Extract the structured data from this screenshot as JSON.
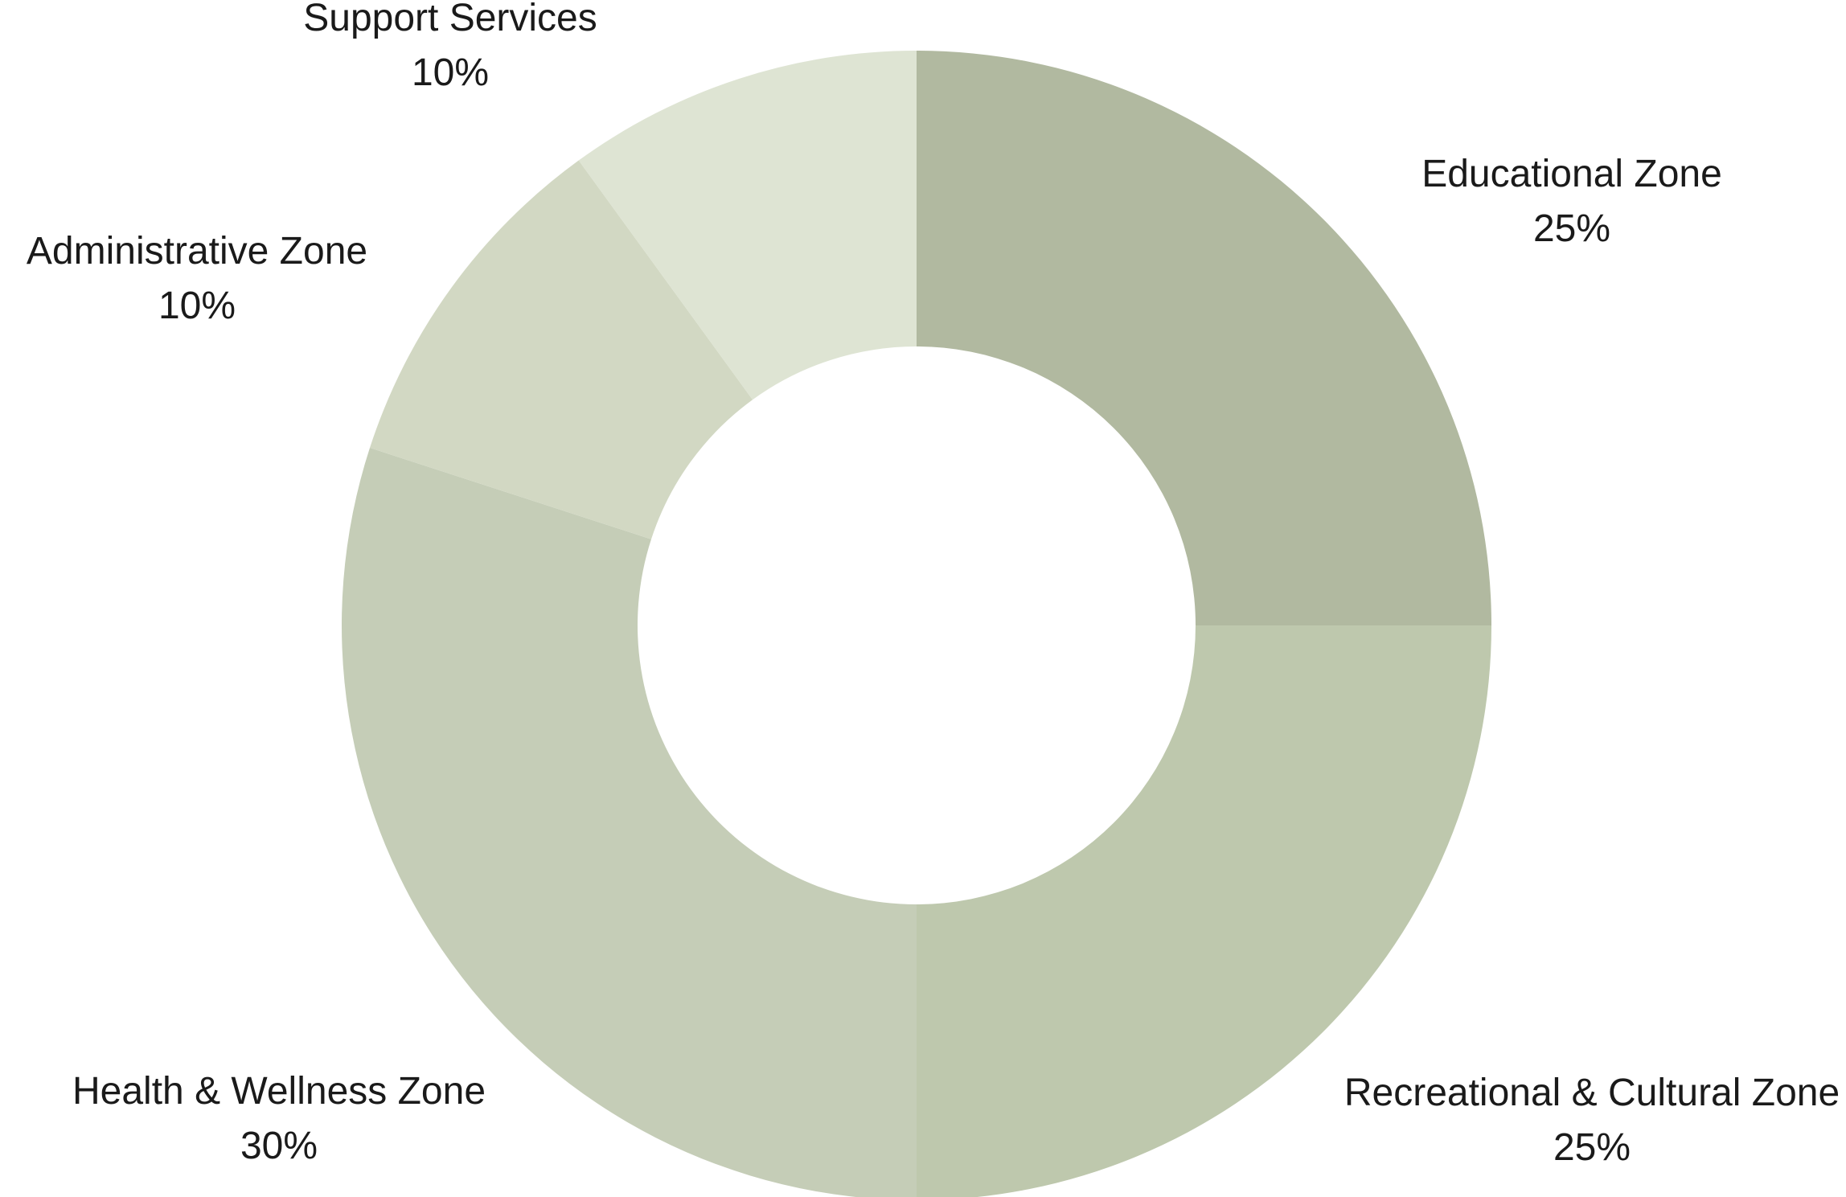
{
  "chart_data": {
    "type": "pie",
    "variant": "donut",
    "slices": [
      {
        "label": "Educational Zone",
        "value": 25,
        "value_label": "25%",
        "color": "#b1b9a0"
      },
      {
        "label": "Recreational & Cultural Zone",
        "value": 25,
        "value_label": "25%",
        "color": "#bec8ad"
      },
      {
        "label": "Health & Wellness Zone",
        "value": 30,
        "value_label": "30%",
        "color": "#c5cdb7"
      },
      {
        "label": "Administrative Zone",
        "value": 10,
        "value_label": "10%",
        "color": "#d2d8c3"
      },
      {
        "label": "Support Services",
        "value": 10,
        "value_label": "10%",
        "color": "#dee4d3"
      }
    ],
    "start_angle": "12 o'clock",
    "direction": "clockwise",
    "legend": "none"
  }
}
